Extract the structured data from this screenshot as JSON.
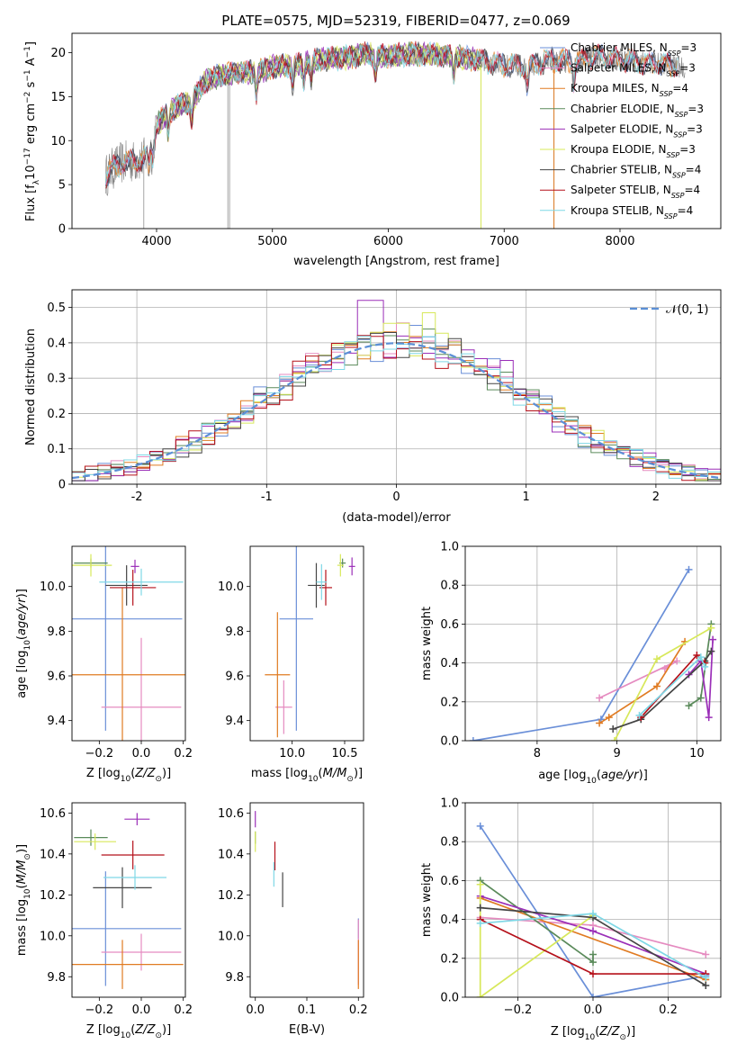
{
  "figure_title": "PLATE=0575, MJD=52319, FIBERID=0477, z=0.069",
  "colors": {
    "Chabrier MILES": "#6a8fd8",
    "Salpeter MILES": "#e58bc0",
    "Kroupa MILES": "#e07b22",
    "Chabrier ELODIE": "#5a8a5a",
    "Salpeter ELODIE": "#9b2fb8",
    "Kroupa ELODIE": "#d7e85a",
    "Chabrier STELIB": "#444444",
    "Salpeter STELIB": "#b5101a",
    "Kroupa STELIB": "#7fd8e6",
    "data": "#808080",
    "normal": "#5b8fd6"
  },
  "chart_data": [
    {
      "id": "spectrum",
      "type": "line",
      "title": "PLATE=0575, MJD=52319, FIBERID=0477, z=0.069",
      "xlabel": "wavelength [Angstrom, rest frame]",
      "ylabel": "Flux [f$_\\lambda$10$^{-17}$ erg cm$^{-2}$ s$^{-1}$ A$^{-1}$]",
      "ylabel_parts": [
        "Flux [f",
        "λ",
        "10",
        "−17",
        " erg cm",
        "−2",
        " s",
        "−1",
        " A",
        "−1",
        "]"
      ],
      "xlim": [
        3270,
        8870
      ],
      "ylim": [
        0,
        22.2
      ],
      "xticks": [
        4000,
        5000,
        6000,
        7000,
        8000
      ],
      "yticks": [
        0,
        5,
        10,
        15,
        20
      ],
      "grid": false,
      "legend_position": "right",
      "legend": [
        {
          "name": "Chabrier MILES",
          "nssp": "3"
        },
        {
          "name": "Salpeter MILES",
          "nssp": "3"
        },
        {
          "name": "Kroupa MILES",
          "nssp": "4"
        },
        {
          "name": "Chabrier ELODIE",
          "nssp": "3"
        },
        {
          "name": "Salpeter ELODIE",
          "nssp": "3"
        },
        {
          "name": "Kroupa ELODIE",
          "nssp": "3"
        },
        {
          "name": "Chabrier STELIB",
          "nssp": "4"
        },
        {
          "name": "Salpeter STELIB",
          "nssp": "4"
        },
        {
          "name": "Kroupa STELIB",
          "nssp": "4"
        }
      ],
      "nssp_label": "N",
      "nssp_sub": "SSP",
      "continuum": {
        "x": [
          3560,
          3620,
          3700,
          3800,
          3900,
          3950,
          4000,
          4100,
          4200,
          4300,
          4400,
          4500,
          4700,
          4860,
          5000,
          5200,
          5400,
          5600,
          5800,
          6000,
          6200,
          6400,
          6600,
          6800,
          7000,
          7200,
          7400,
          7600,
          7800,
          8000,
          8200,
          8400,
          8550
        ],
        "y": [
          6.0,
          6.8,
          7.5,
          7.6,
          8.0,
          9.5,
          11.8,
          13.2,
          14.0,
          14.3,
          16.5,
          17.2,
          17.8,
          17.7,
          18.4,
          18.6,
          19.2,
          19.4,
          19.8,
          19.6,
          19.9,
          19.8,
          19.5,
          19.1,
          18.6,
          18.4,
          19.2,
          18.9,
          19.6,
          19.2,
          18.8,
          18.7,
          18.3
        ]
      },
      "absorption_lines": [
        3934,
        3968,
        4101,
        4305,
        4861,
        5175,
        5270,
        5335,
        5890,
        6563,
        7200,
        7600
      ],
      "spikes": [
        {
          "x": 3890,
          "y": 0
        },
        {
          "x": 4615,
          "y": 0
        },
        {
          "x": 4630,
          "y": 0
        },
        {
          "x": 6800,
          "y": 0
        },
        {
          "x": 7430,
          "y": 0
        }
      ]
    },
    {
      "id": "residuals",
      "type": "histogram",
      "xlabel": "(data-model)/error",
      "ylabel": "Normed distribution",
      "xlim": [
        -2.5,
        2.5
      ],
      "ylim": [
        0,
        0.55
      ],
      "xticks": [
        -2,
        -1,
        0,
        1,
        2
      ],
      "yticks": [
        0.0,
        0.1,
        0.2,
        0.3,
        0.4,
        0.5
      ],
      "grid": true,
      "legend_position": "upper right",
      "legend": [
        {
          "name": "𝒩(0, 1)",
          "style": "dashed"
        }
      ],
      "bin_width": 0.1,
      "bin_edges_start": -2.5,
      "peaks": [
        {
          "model": "Salpeter ELODIE",
          "x": -0.2,
          "y": 0.52
        },
        {
          "model": "Kroupa ELODIE",
          "x": 0.25,
          "y": 0.485
        },
        {
          "model": "Kroupa ELODIE",
          "x": 0.0,
          "y": 0.455
        },
        {
          "model": "Salpeter ELODIE",
          "x": 0.85,
          "y": 0.35
        }
      ]
    },
    {
      "id": "age-vs-Z",
      "type": "errorbar",
      "xlabel": "Z [log$_{10}$(Z/Z$_\\odot$)]",
      "ylabel": "age  [log$_{10}$(age/yr)]",
      "xlim": [
        -0.33,
        0.21
      ],
      "ylim": [
        9.31,
        10.18
      ],
      "xticks": [
        -0.2,
        0.0,
        0.2
      ],
      "xticklabels": [
        "−0.2",
        "0.0",
        "0.2"
      ],
      "yticks": [
        9.4,
        9.6,
        9.8,
        10.0
      ],
      "yticklabels": [
        "9.4",
        "9.6",
        "9.8",
        "10.0"
      ],
      "grid": false,
      "points": [
        {
          "model": "Chabrier MILES",
          "x": -0.17,
          "y": 9.855,
          "xerr": 0.365,
          "yerr": 0.5
        },
        {
          "model": "Salpeter MILES",
          "x": 0.0,
          "y": 9.46,
          "xerr": 0.19,
          "yerr": 0.31
        },
        {
          "model": "Kroupa MILES",
          "x": -0.09,
          "y": 9.605,
          "xerr": 0.38,
          "yerr": 0.39
        },
        {
          "model": "Chabrier ELODIE",
          "x": -0.24,
          "y": 10.105,
          "xerr": 0.08,
          "yerr": 0.02
        },
        {
          "model": "Salpeter ELODIE",
          "x": -0.03,
          "y": 10.09,
          "xerr": 0.02,
          "yerr": 0.03
        },
        {
          "model": "Kroupa ELODIE",
          "x": -0.24,
          "y": 10.095,
          "xerr": 0.1,
          "yerr": 0.05
        },
        {
          "model": "Chabrier STELIB",
          "x": -0.07,
          "y": 10.005,
          "xerr": 0.1,
          "yerr": 0.09
        },
        {
          "model": "Salpeter STELIB",
          "x": -0.04,
          "y": 9.995,
          "xerr": 0.11,
          "yerr": 0.08
        },
        {
          "model": "Kroupa STELIB",
          "x": 0.0,
          "y": 10.02,
          "xerr": 0.2,
          "yerr": 0.06
        }
      ]
    },
    {
      "id": "age-vs-mass",
      "type": "errorbar",
      "xlabel": "mass [log$_{10}$(M/M$_\\odot$)]",
      "ylabel": "",
      "xlim": [
        9.6,
        10.68
      ],
      "ylim": [
        9.31,
        10.18
      ],
      "xticks": [
        10.0,
        10.5
      ],
      "xticklabels": [
        "10.0",
        "10.5"
      ],
      "yticks": [
        9.4,
        9.6,
        9.8,
        10.0
      ],
      "yticklabels": [
        "9.4",
        "9.6",
        "9.8",
        "10.0"
      ],
      "grid": false,
      "points": [
        {
          "model": "Chabrier MILES",
          "x": 10.04,
          "y": 9.855,
          "xerr": 0.16,
          "yerr": 0.5
        },
        {
          "model": "Salpeter MILES",
          "x": 9.92,
          "y": 9.46,
          "xerr": 0.08,
          "yerr": 0.12
        },
        {
          "model": "Kroupa MILES",
          "x": 9.86,
          "y": 9.605,
          "xerr": 0.12,
          "yerr": 0.28
        },
        {
          "model": "Chabrier ELODIE",
          "x": 10.48,
          "y": 10.105,
          "xerr": 0.03,
          "yerr": 0.02
        },
        {
          "model": "Salpeter ELODIE",
          "x": 10.57,
          "y": 10.09,
          "xerr": 0.03,
          "yerr": 0.04
        },
        {
          "model": "Kroupa ELODIE",
          "x": 10.46,
          "y": 10.095,
          "xerr": 0.03,
          "yerr": 0.05
        },
        {
          "model": "Chabrier STELIB",
          "x": 10.23,
          "y": 10.005,
          "xerr": 0.08,
          "yerr": 0.1
        },
        {
          "model": "Salpeter STELIB",
          "x": 10.32,
          "y": 9.995,
          "xerr": 0.06,
          "yerr": 0.08
        },
        {
          "model": "Kroupa STELIB",
          "x": 10.28,
          "y": 10.02,
          "xerr": 0.05,
          "yerr": 0.08
        }
      ]
    },
    {
      "id": "weight-vs-age",
      "type": "line",
      "xlabel": "age  [log$_{10}$(age/yr)]",
      "ylabel": "mass weight",
      "xlim": [
        7.1,
        10.3
      ],
      "ylim": [
        0.0,
        1.0
      ],
      "xticks": [
        8,
        9,
        10
      ],
      "xticklabels": [
        "8",
        "9",
        "10"
      ],
      "yticks": [
        0.0,
        0.2,
        0.4,
        0.6,
        0.8,
        1.0
      ],
      "yticklabels": [
        "0.0",
        "0.2",
        "0.4",
        "0.6",
        "0.8",
        "1.0"
      ],
      "grid": true,
      "series": [
        {
          "model": "Chabrier MILES",
          "x": [
            7.2,
            8.8,
            9.9
          ],
          "y": [
            0.0,
            0.11,
            0.88
          ]
        },
        {
          "model": "Salpeter MILES",
          "x": [
            8.78,
            9.75,
            9.6
          ],
          "y": [
            0.22,
            0.41,
            0.37
          ]
        },
        {
          "model": "Kroupa MILES",
          "x": [
            8.78,
            8.9,
            9.5,
            9.85
          ],
          "y": [
            0.09,
            0.12,
            0.28,
            0.51
          ]
        },
        {
          "model": "Chabrier ELODIE",
          "x": [
            9.9,
            10.05,
            10.18
          ],
          "y": [
            0.18,
            0.22,
            0.6
          ]
        },
        {
          "model": "Salpeter ELODIE",
          "x": [
            9.9,
            10.05,
            10.15,
            10.2
          ],
          "y": [
            0.34,
            0.41,
            0.12,
            0.52
          ]
        },
        {
          "model": "Kroupa ELODIE",
          "x": [
            8.97,
            9.5,
            10.18
          ],
          "y": [
            0.0,
            0.42,
            0.58
          ]
        },
        {
          "model": "Chabrier STELIB",
          "x": [
            8.95,
            9.3,
            10.1,
            10.18
          ],
          "y": [
            0.06,
            0.11,
            0.41,
            0.46
          ]
        },
        {
          "model": "Salpeter STELIB",
          "x": [
            9.3,
            10.0,
            10.1
          ],
          "y": [
            0.12,
            0.44,
            0.4
          ]
        },
        {
          "model": "Kroupa STELIB",
          "x": [
            9.28,
            10.05,
            10.1
          ],
          "y": [
            0.13,
            0.43,
            0.38
          ]
        }
      ]
    },
    {
      "id": "mass-vs-Z",
      "type": "errorbar",
      "xlabel": "Z [log$_{10}$(Z/Z$_\\odot$)]",
      "ylabel": "mass [log$_{10}$(M/M$_\\odot$)]",
      "xlim": [
        -0.33,
        0.21
      ],
      "ylim": [
        9.7,
        10.65
      ],
      "xticks": [
        -0.2,
        0.0,
        0.2
      ],
      "xticklabels": [
        "−0.2",
        "0.0",
        "0.2"
      ],
      "yticks": [
        9.8,
        10.0,
        10.2,
        10.4,
        10.6
      ],
      "yticklabels": [
        "9.8",
        "10.0",
        "10.2",
        "10.4",
        "10.6"
      ],
      "grid": false,
      "points": [
        {
          "model": "Chabrier MILES",
          "x": -0.17,
          "y": 10.035,
          "xerr": 0.36,
          "yerr": 0.28
        },
        {
          "model": "Salpeter MILES",
          "x": 0.0,
          "y": 9.92,
          "xerr": 0.19,
          "yerr": 0.09
        },
        {
          "model": "Kroupa MILES",
          "x": -0.09,
          "y": 9.86,
          "xerr": 0.29,
          "yerr": 0.12
        },
        {
          "model": "Chabrier ELODIE",
          "x": -0.24,
          "y": 10.48,
          "xerr": 0.08,
          "yerr": 0.04
        },
        {
          "model": "Salpeter ELODIE",
          "x": -0.02,
          "y": 10.57,
          "xerr": 0.06,
          "yerr": 0.03
        },
        {
          "model": "Kroupa ELODIE",
          "x": -0.22,
          "y": 10.46,
          "xerr": 0.1,
          "yerr": 0.04
        },
        {
          "model": "Chabrier STELIB",
          "x": -0.09,
          "y": 10.235,
          "xerr": 0.14,
          "yerr": 0.1
        },
        {
          "model": "Salpeter STELIB",
          "x": -0.04,
          "y": 10.395,
          "xerr": 0.15,
          "yerr": 0.07
        },
        {
          "model": "Kroupa STELIB",
          "x": -0.03,
          "y": 10.285,
          "xerr": 0.15,
          "yerr": 0.06
        }
      ]
    },
    {
      "id": "mass-vs-EBV",
      "type": "errorbar",
      "xlabel": "E(B-V)",
      "ylabel": "",
      "xlim": [
        -0.01,
        0.21
      ],
      "ylim": [
        9.7,
        10.65
      ],
      "xticks": [
        0.0,
        0.1,
        0.2
      ],
      "xticklabels": [
        "0.0",
        "0.1",
        "0.2"
      ],
      "yticks": [
        9.8,
        10.0,
        10.2,
        10.4,
        10.6
      ],
      "yticklabels": [
        "9.8",
        "10.0",
        "10.2",
        "10.4",
        "10.6"
      ],
      "grid": false,
      "points": [
        {
          "model": "Chabrier MILES",
          "x": 0.2,
          "y": 10.035,
          "xerr": 0.0,
          "yerr": 0.05
        },
        {
          "model": "Salpeter MILES",
          "x": 0.2,
          "y": 9.92,
          "xerr": 0.0,
          "yerr": 0.16
        },
        {
          "model": "Kroupa MILES",
          "x": 0.2,
          "y": 9.86,
          "xerr": 0.0,
          "yerr": 0.12
        },
        {
          "model": "Chabrier ELODIE",
          "x": 0.0,
          "y": 10.48,
          "xerr": 0.0,
          "yerr": 0.03
        },
        {
          "model": "Salpeter ELODIE",
          "x": 0.0,
          "y": 10.57,
          "xerr": 0.0,
          "yerr": 0.04
        },
        {
          "model": "Kroupa ELODIE",
          "x": 0.0,
          "y": 10.46,
          "xerr": 0.0,
          "yerr": 0.05
        },
        {
          "model": "Chabrier STELIB",
          "x": 0.053,
          "y": 10.225,
          "xerr": 0.0,
          "yerr": 0.085
        },
        {
          "model": "Salpeter STELIB",
          "x": 0.038,
          "y": 10.39,
          "xerr": 0.0,
          "yerr": 0.07
        },
        {
          "model": "Kroupa STELIB",
          "x": 0.036,
          "y": 10.3,
          "xerr": 0.0,
          "yerr": 0.06
        }
      ]
    },
    {
      "id": "weight-vs-Z",
      "type": "line",
      "xlabel": "Z [log$_{10}$(Z/Z$_\\odot$)]",
      "ylabel": "mass weight",
      "xlim": [
        -0.34,
        0.34
      ],
      "ylim": [
        0.0,
        1.0
      ],
      "xticks": [
        -0.2,
        0.0,
        0.2
      ],
      "xticklabels": [
        "−0.2",
        "0.0",
        "0.2"
      ],
      "yticks": [
        0.0,
        0.2,
        0.4,
        0.6,
        0.8,
        1.0
      ],
      "yticklabels": [
        "0.0",
        "0.2",
        "0.4",
        "0.6",
        "0.8",
        "1.0"
      ],
      "grid": true,
      "series": [
        {
          "model": "Chabrier MILES",
          "x": [
            -0.3,
            0.0,
            0.3
          ],
          "y": [
            0.88,
            0.0,
            0.11
          ]
        },
        {
          "model": "Salpeter MILES",
          "x": [
            -0.3,
            0.0,
            0.3
          ],
          "y": [
            0.41,
            0.37,
            0.22
          ]
        },
        {
          "model": "Kroupa MILES",
          "x": [
            -0.3,
            0.3
          ],
          "y": [
            0.51,
            0.09
          ]
        },
        {
          "model": "Chabrier ELODIE",
          "x": [
            -0.3,
            0.0,
            0.0
          ],
          "y": [
            0.6,
            0.18,
            0.22
          ]
        },
        {
          "model": "Salpeter ELODIE",
          "x": [
            -0.3,
            0.0,
            0.3
          ],
          "y": [
            0.52,
            0.34,
            0.12
          ]
        },
        {
          "model": "Kroupa ELODIE",
          "x": [
            -0.3,
            -0.3,
            0.0
          ],
          "y": [
            0.58,
            0.0,
            0.42
          ]
        },
        {
          "model": "Chabrier STELIB",
          "x": [
            -0.3,
            0.0,
            0.3
          ],
          "y": [
            0.46,
            0.41,
            0.06
          ]
        },
        {
          "model": "Salpeter STELIB",
          "x": [
            -0.3,
            0.0,
            0.3
          ],
          "y": [
            0.4,
            0.12,
            0.12
          ]
        },
        {
          "model": "Kroupa STELIB",
          "x": [
            -0.3,
            0.0,
            0.3
          ],
          "y": [
            0.38,
            0.43,
            0.1
          ]
        }
      ]
    }
  ]
}
